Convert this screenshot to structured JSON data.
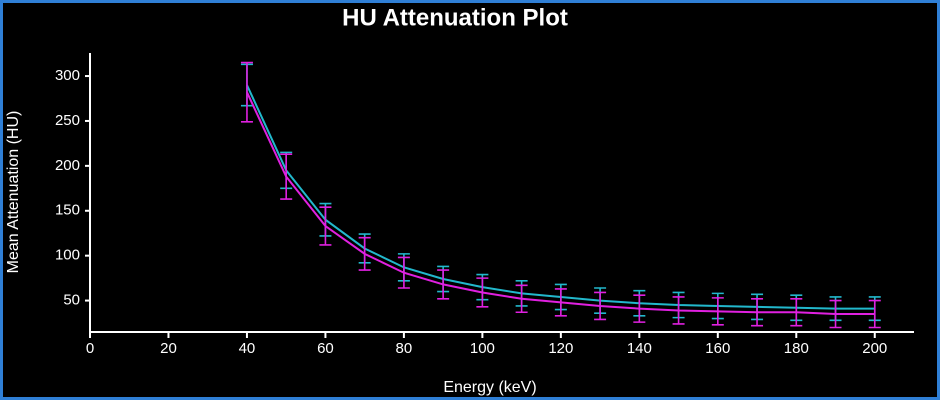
{
  "chart_data": {
    "type": "line",
    "title": "HU Attenuation Plot",
    "xlabel": "Energy (keV)",
    "ylabel": "Mean Attenuation (HU)",
    "x": [
      40,
      50,
      60,
      70,
      80,
      90,
      100,
      110,
      120,
      130,
      140,
      150,
      160,
      170,
      180,
      190,
      200
    ],
    "series": [
      {
        "color": "#22b8cc",
        "values": [
          290,
          195,
          140,
          108,
          87,
          74,
          65,
          58,
          54,
          50,
          47,
          45,
          44,
          43,
          42,
          41,
          41
        ],
        "errors": [
          23,
          20,
          18,
          16,
          15,
          14,
          14,
          14,
          14,
          14,
          14,
          14,
          14,
          14,
          14,
          13,
          13
        ]
      },
      {
        "color": "#e020e0",
        "values": [
          282,
          188,
          133,
          102,
          81,
          68,
          59,
          52,
          48,
          44,
          41,
          39,
          38,
          37,
          37,
          35,
          35
        ],
        "errors": [
          33,
          25,
          21,
          18,
          17,
          16,
          16,
          15,
          15,
          15,
          15,
          15,
          15,
          15,
          15,
          15,
          15
        ]
      }
    ],
    "xlim": [
      0,
      210
    ],
    "ylim": [
      15,
      325
    ],
    "xticks": [
      0,
      20,
      40,
      60,
      80,
      100,
      120,
      140,
      160,
      180,
      200
    ],
    "yticks": [
      50,
      100,
      150,
      200,
      250,
      300
    ]
  }
}
